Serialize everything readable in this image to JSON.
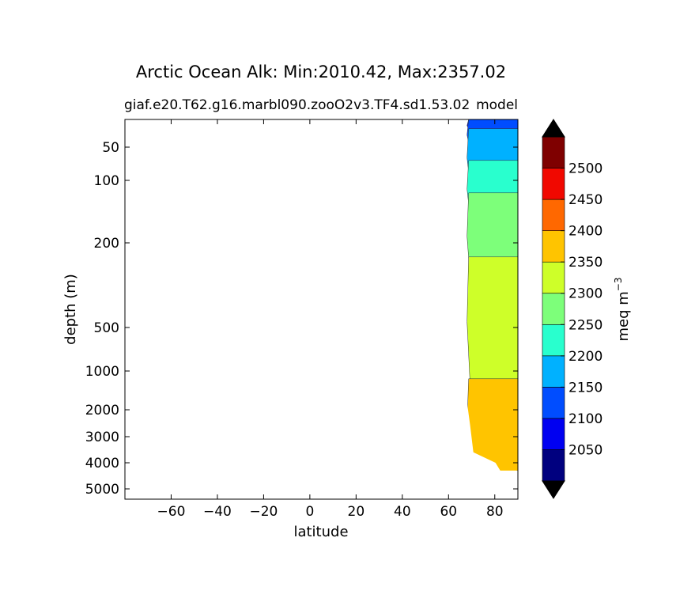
{
  "chart_data": {
    "type": "heatmap",
    "title": "Arctic Ocean Alk: Min:2010.42, Max:2357.02",
    "subtitle_left": "giaf.e20.T62.g16.marbl090.zooO2v3.TF4.sd1.53.02",
    "subtitle_right": "model",
    "xlabel": "latitude",
    "ylabel": "depth (m)",
    "x_ticks": [
      -60,
      -40,
      -20,
      0,
      20,
      40,
      60,
      80
    ],
    "x_tick_labels": [
      "−60",
      "−40",
      "−20",
      "0",
      "20",
      "40",
      "60",
      "80"
    ],
    "xlim": [
      -80,
      90
    ],
    "y_ticks": [
      50,
      100,
      200,
      500,
      1000,
      2000,
      3000,
      4000,
      5000
    ],
    "y_tick_labels": [
      "50",
      "100",
      "200",
      "500",
      "1000",
      "2000",
      "3000",
      "4000",
      "5000"
    ],
    "ylim": [
      5500,
      5
    ],
    "y_inverted": true,
    "colorbar": {
      "label": "meq m",
      "label_superscript": "−3",
      "levels": [
        2000,
        2050,
        2100,
        2150,
        2200,
        2250,
        2300,
        2350,
        2400,
        2450,
        2500,
        2550
      ],
      "tick_values": [
        2050,
        2100,
        2150,
        2200,
        2250,
        2300,
        2350,
        2400,
        2450,
        2500
      ],
      "tick_labels": [
        "2050",
        "2100",
        "2150",
        "2200",
        "2250",
        "2300",
        "2350",
        "2400",
        "2450",
        "2500"
      ],
      "colors": [
        "#00007f",
        "#0000f1",
        "#004dff",
        "#00b1ff",
        "#29ffce",
        "#7dff7a",
        "#ceff29",
        "#ffc400",
        "#ff6800",
        "#f10800",
        "#7f0000"
      ],
      "extend": "both",
      "under_color": "#000000",
      "over_color": "#000000"
    },
    "field": {
      "lat_min": 65,
      "lat_max": 90,
      "bands": [
        {
          "value_range": [
            2050,
            2100
          ],
          "depth_top": 5,
          "depth_bottom": 25
        },
        {
          "value_range": [
            2100,
            2150
          ],
          "depth_top": 5,
          "depth_bottom": 55
        },
        {
          "value_range": [
            2150,
            2200
          ],
          "depth_top": 20,
          "depth_bottom": 110
        },
        {
          "value_range": [
            2200,
            2250
          ],
          "depth_top": 70,
          "depth_bottom": 160
        },
        {
          "value_range": [
            2250,
            2300
          ],
          "depth_top": 120,
          "depth_bottom": 330
        },
        {
          "value_range": [
            2300,
            2350
          ],
          "depth_top": 250,
          "depth_bottom": 1400
        },
        {
          "value_range": [
            2350,
            2400
          ],
          "depth_top": 1200,
          "depth_bottom": 4300
        }
      ]
    }
  }
}
